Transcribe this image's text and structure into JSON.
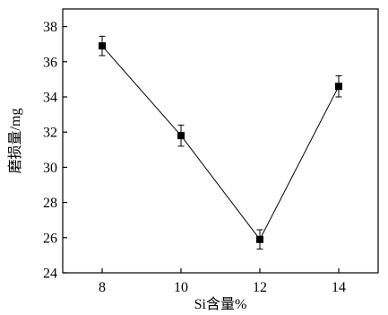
{
  "chart_data": {
    "type": "line",
    "title": "",
    "xlabel": "Si含量%",
    "ylabel": "磨损量/mg",
    "xlim": [
      7,
      15
    ],
    "ylim": [
      24,
      39
    ],
    "x_ticks": [
      8,
      10,
      12,
      14
    ],
    "y_ticks": [
      24,
      26,
      28,
      30,
      32,
      34,
      36,
      38
    ],
    "grid": false,
    "legend": "none",
    "series": [
      {
        "x": [
          8,
          10,
          12,
          14
        ],
        "y": [
          36.9,
          31.8,
          25.9,
          34.6
        ],
        "error": [
          0.55,
          0.6,
          0.55,
          0.6
        ],
        "marker": "square",
        "color": "#000000"
      }
    ]
  }
}
